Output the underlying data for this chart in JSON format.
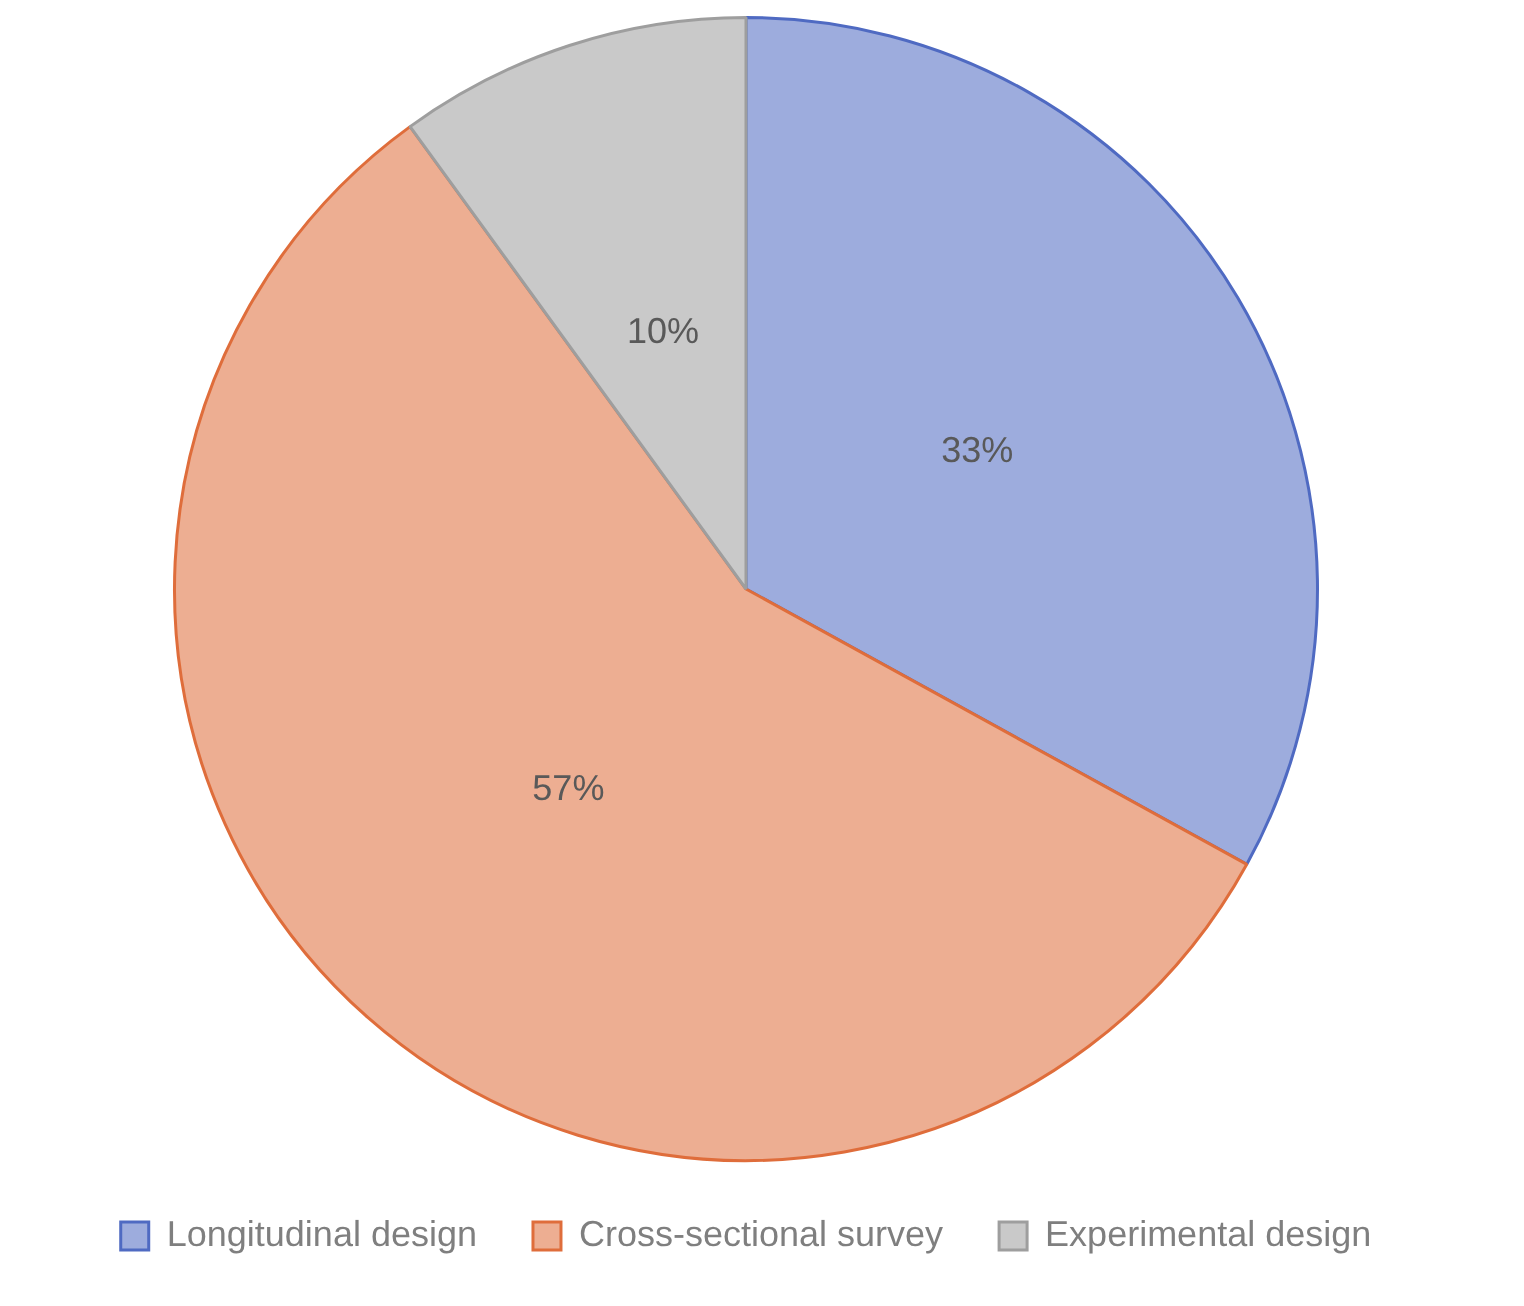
{
  "chart_data": {
    "type": "pie",
    "categories": [
      "Longitudinal design",
      "Cross-sectional survey",
      "Experimental design"
    ],
    "values": [
      33,
      57,
      10
    ],
    "value_labels": [
      "33%",
      "57%",
      "10%"
    ],
    "colors": [
      "#9dacdd",
      "#edae92",
      "#c9c9c9"
    ],
    "legend": "bottom"
  }
}
